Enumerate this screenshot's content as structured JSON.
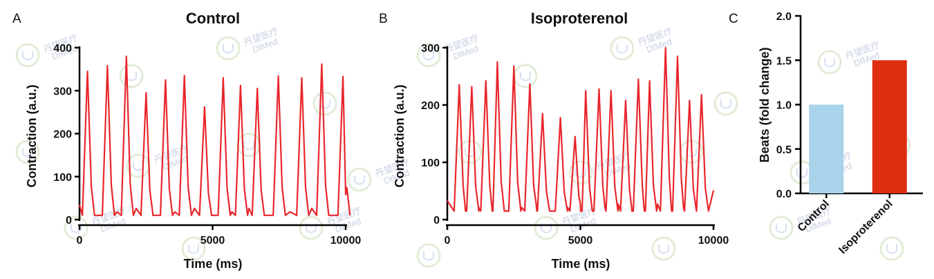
{
  "colors": {
    "trace": "#e8262b",
    "bar_control": "#a9d3ea",
    "bar_iso": "#dd2e10",
    "axis": "#000000"
  },
  "watermark": {
    "line1": "丹望医疗",
    "line2": "DIMed",
    "logo_icon": "shield-logo-icon"
  },
  "chart_data": [
    {
      "type": "line",
      "panel": "A",
      "title": "Control",
      "xlabel": "Time (ms)",
      "ylabel": "Contraction (a.u.)",
      "xlim": [
        0,
        10000
      ],
      "ylim": [
        0,
        400
      ],
      "xticks": [
        0,
        5000,
        10000
      ],
      "yticks": [
        0,
        100,
        200,
        300,
        400
      ],
      "baseline": 10,
      "peaks": [
        {
          "t": 300,
          "v": 345
        },
        {
          "t": 1050,
          "v": 358
        },
        {
          "t": 1760,
          "v": 380
        },
        {
          "t": 2500,
          "v": 295
        },
        {
          "t": 3230,
          "v": 325
        },
        {
          "t": 3940,
          "v": 335
        },
        {
          "t": 4700,
          "v": 262
        },
        {
          "t": 5400,
          "v": 330
        },
        {
          "t": 6050,
          "v": 312
        },
        {
          "t": 6680,
          "v": 305
        },
        {
          "t": 7470,
          "v": 334
        },
        {
          "t": 8350,
          "v": 330
        },
        {
          "t": 9100,
          "v": 362
        },
        {
          "t": 9900,
          "v": 333
        }
      ]
    },
    {
      "type": "line",
      "panel": "B",
      "title": "Isoproterenol",
      "xlabel": "Time (ms)",
      "ylabel": "Contraction (a.u.)",
      "xlim": [
        0,
        10000
      ],
      "ylim": [
        0,
        300
      ],
      "xticks": [
        0,
        5000,
        10000
      ],
      "yticks": [
        0,
        100,
        200,
        300
      ],
      "baseline": 15,
      "peaks": [
        {
          "t": 450,
          "v": 235
        },
        {
          "t": 920,
          "v": 232
        },
        {
          "t": 1450,
          "v": 242
        },
        {
          "t": 1880,
          "v": 275
        },
        {
          "t": 2500,
          "v": 268
        },
        {
          "t": 3100,
          "v": 237
        },
        {
          "t": 3580,
          "v": 185
        },
        {
          "t": 4250,
          "v": 178
        },
        {
          "t": 4800,
          "v": 145
        },
        {
          "t": 5200,
          "v": 225
        },
        {
          "t": 5700,
          "v": 228
        },
        {
          "t": 6150,
          "v": 225
        },
        {
          "t": 6700,
          "v": 208
        },
        {
          "t": 7180,
          "v": 245
        },
        {
          "t": 7600,
          "v": 242
        },
        {
          "t": 8200,
          "v": 300
        },
        {
          "t": 8650,
          "v": 285
        },
        {
          "t": 9100,
          "v": 208
        },
        {
          "t": 9550,
          "v": 218
        }
      ]
    },
    {
      "type": "bar",
      "panel": "C",
      "ylabel": "Beats (fold change)",
      "categories": [
        "Control",
        "Isoproterenol"
      ],
      "values": [
        1.0,
        1.5
      ],
      "ylim": [
        0,
        2.0
      ],
      "yticks": [
        "0.0",
        "0.5",
        "1.0",
        "1.5",
        "2.0"
      ]
    }
  ]
}
